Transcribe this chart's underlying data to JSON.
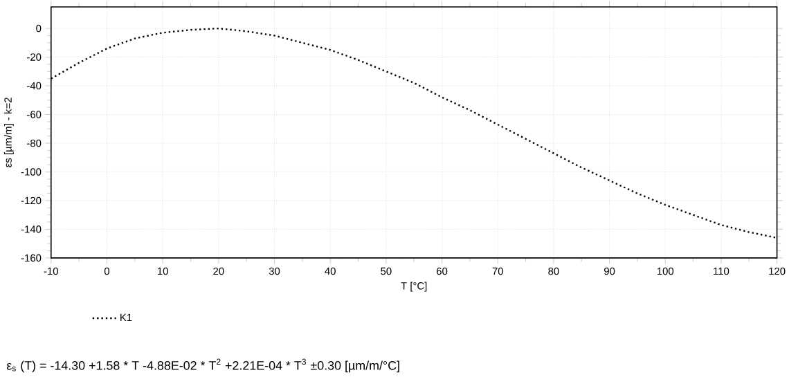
{
  "chart_data": {
    "type": "line",
    "xlabel": "T [°C]",
    "ylabel": "εs [µm/m] - k=2",
    "x": [
      -10,
      -5,
      0,
      5,
      10,
      15,
      20,
      25,
      30,
      35,
      40,
      45,
      50,
      55,
      60,
      65,
      70,
      75,
      80,
      85,
      90,
      95,
      100,
      105,
      110,
      115,
      120
    ],
    "series": [
      {
        "name": "K1",
        "color": "#000000",
        "line_style": "dotted",
        "values": [
          -35,
          -24,
          -14,
          -7,
          -3,
          -1,
          0,
          -2,
          -5,
          -10,
          -15,
          -22,
          -30,
          -38,
          -48,
          -57,
          -67,
          -77,
          -87,
          -97,
          -106,
          -115,
          -123,
          -130,
          -137,
          -142,
          -146
        ]
      }
    ],
    "xlim": [
      -10,
      120
    ],
    "ylim": [
      -160,
      15
    ],
    "xticks": [
      -10,
      0,
      10,
      20,
      30,
      40,
      50,
      60,
      70,
      80,
      90,
      100,
      110,
      120
    ],
    "yticks": [
      -160,
      -140,
      -120,
      -100,
      -80,
      -60,
      -40,
      -20,
      0
    ],
    "grid": true,
    "legend": "bottom left",
    "annotations": [
      "ε$_{s}$ (T) =  -14.30 +1.58 * T -4.88E-02 * T$^{2}$ +2.21E-04 * T$^{3}$ ±0.30 [µm/m/°C]"
    ]
  }
}
